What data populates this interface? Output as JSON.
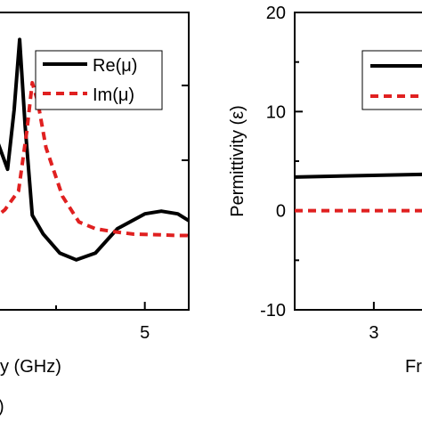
{
  "chart_data": [
    {
      "type": "line",
      "xlabel_visible": "y (GHz)",
      "panel_label_visible": ")",
      "xlim": [
        2.2,
        5.8
      ],
      "x_ticks": [
        5
      ],
      "x_tick_labels": [
        "5"
      ],
      "ylim": [
        -3,
        8
      ],
      "legend_placement": "top-right",
      "series": [
        {
          "name": "Re(μ)",
          "color": "#000000",
          "dash": "solid",
          "x": [
            2.2,
            2.32,
            2.5,
            2.62,
            2.72,
            2.82,
            2.95,
            3.15,
            3.45,
            3.75,
            4.1,
            4.5,
            5.0,
            5.3,
            5.6,
            5.8
          ],
          "y": [
            4.5,
            3.2,
            2.2,
            4.4,
            7.0,
            3.8,
            0.5,
            -0.2,
            -0.9,
            -1.15,
            -0.9,
            0.0,
            0.55,
            0.65,
            0.55,
            0.3
          ]
        },
        {
          "name": "Im(μ)",
          "color": "#e02020",
          "dash": "dashed",
          "x": [
            2.2,
            2.45,
            2.7,
            2.85,
            2.95,
            3.05,
            3.2,
            3.5,
            3.8,
            4.1,
            4.4,
            4.8,
            5.2,
            5.6,
            5.8
          ],
          "y": [
            0.3,
            0.7,
            1.4,
            3.6,
            5.4,
            4.7,
            3.0,
            1.2,
            0.25,
            0.0,
            -0.1,
            -0.2,
            -0.22,
            -0.25,
            -0.25
          ]
        }
      ]
    },
    {
      "type": "line",
      "ylabel": "Permittivity (ε)",
      "xlabel_visible": "Fr",
      "xlim": [
        1.5,
        4.2
      ],
      "x_ticks": [
        3
      ],
      "x_tick_labels": [
        "3"
      ],
      "ylim": [
        -10,
        20
      ],
      "y_ticks": [
        -10,
        0,
        10,
        20
      ],
      "y_tick_labels": [
        "-10",
        "0",
        "10",
        "20"
      ],
      "legend_placement": "top-right",
      "series": [
        {
          "color": "#000000",
          "dash": "solid",
          "x": [
            1.5,
            4.2
          ],
          "y": [
            3.4,
            3.7
          ]
        },
        {
          "color": "#e02020",
          "dash": "dashed",
          "x": [
            1.5,
            4.2
          ],
          "y": [
            0,
            0
          ]
        }
      ]
    }
  ]
}
